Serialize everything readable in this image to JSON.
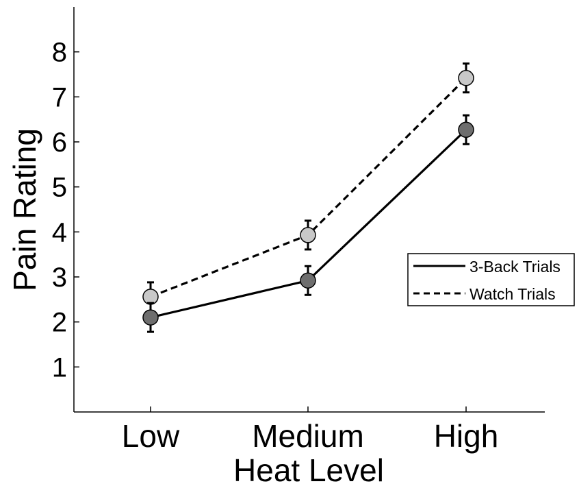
{
  "chart_data": {
    "type": "line",
    "title": "",
    "xlabel": "Heat Level",
    "ylabel": "Pain Rating",
    "categories": [
      "Low",
      "Medium",
      "High"
    ],
    "yticks": [
      "1",
      "2",
      "3",
      "4",
      "5",
      "6",
      "7",
      "8"
    ],
    "ylim": [
      0,
      9
    ],
    "grid": false,
    "legend_position": "right",
    "series": [
      {
        "name": "3-Back Trials",
        "values": [
          2.1,
          2.92,
          6.27
        ],
        "error": [
          0.32,
          0.32,
          0.32
        ],
        "line_style": "solid",
        "marker_color": "#6e6e6e"
      },
      {
        "name": "Watch Trials",
        "values": [
          2.56,
          3.93,
          7.42
        ],
        "error": [
          0.32,
          0.32,
          0.32
        ],
        "line_style": "dashed",
        "marker_color": "#c8c8c8"
      }
    ]
  }
}
